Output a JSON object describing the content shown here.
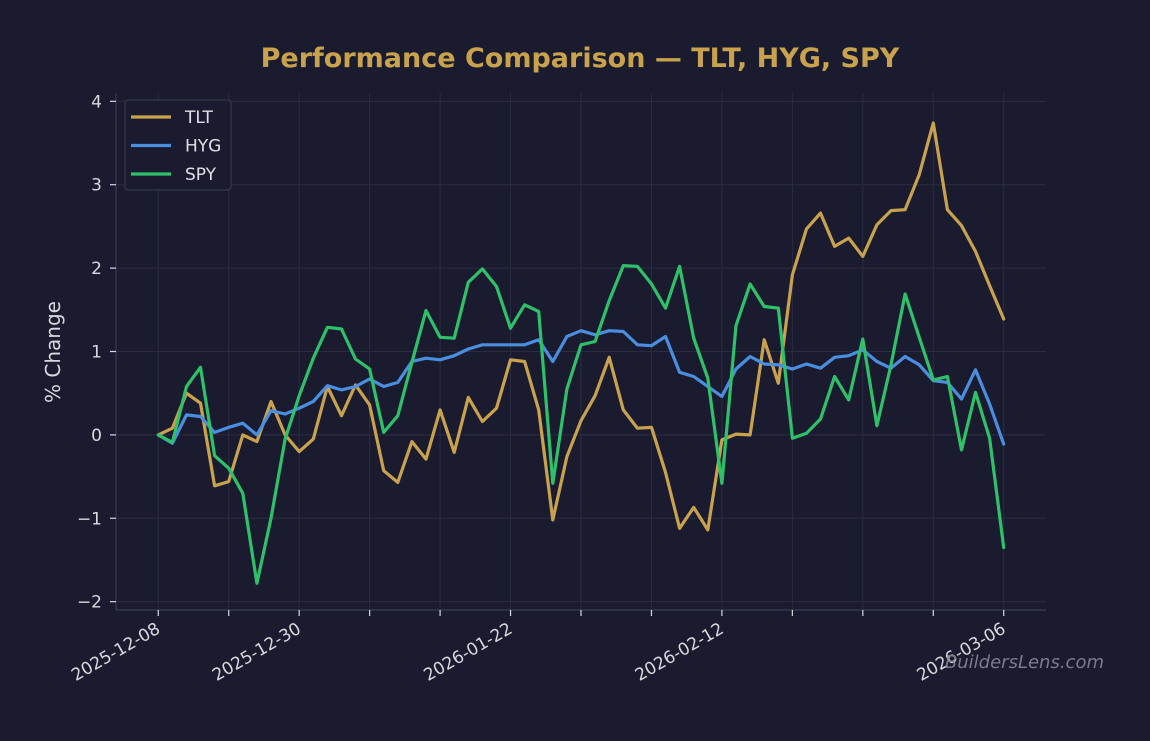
{
  "chart_data": {
    "type": "line",
    "title": "Performance Comparison — TLT, HYG, SPY",
    "xlabel": "",
    "ylabel": "% Change",
    "ylim": [
      -2.1,
      4.1
    ],
    "yticks": [
      -2,
      -1,
      0,
      1,
      2,
      3,
      4
    ],
    "ytick_labels": [
      "−2",
      "−1",
      "0",
      "1",
      "2",
      "3",
      "4"
    ],
    "xlim": [
      -3,
      63
    ],
    "xticks": [
      {
        "idx": 0,
        "label": "2025-12-08"
      },
      {
        "idx": 5,
        "label": ""
      },
      {
        "idx": 10,
        "label": "2025-12-30"
      },
      {
        "idx": 15,
        "label": ""
      },
      {
        "idx": 25,
        "label": "2026-01-22"
      },
      {
        "idx": 20,
        "label": ""
      },
      {
        "idx": 30,
        "label": ""
      },
      {
        "idx": 35,
        "label": ""
      },
      {
        "idx": 40,
        "label": "2026-02-12"
      },
      {
        "idx": 45,
        "label": ""
      },
      {
        "idx": 50,
        "label": ""
      },
      {
        "idx": 55,
        "label": ""
      },
      {
        "idx": 60,
        "label": "2026-03-06"
      }
    ],
    "grid": true,
    "legend_position": "top-left",
    "watermark": "BuildersLens.com",
    "series": [
      {
        "name": "TLT",
        "color": "#c9a24d",
        "values": [
          0.0,
          0.08,
          0.5,
          0.38,
          -0.61,
          -0.56,
          0.0,
          -0.08,
          0.4,
          0.0,
          -0.2,
          -0.05,
          0.58,
          0.23,
          0.6,
          0.36,
          -0.43,
          -0.57,
          -0.08,
          -0.29,
          0.3,
          -0.21,
          0.45,
          0.16,
          0.32,
          0.9,
          0.88,
          0.3,
          -1.02,
          -0.26,
          0.17,
          0.47,
          0.93,
          0.3,
          0.08,
          0.09,
          -0.45,
          -1.12,
          -0.87,
          -1.14,
          -0.06,
          0.01,
          0.0,
          1.14,
          0.62,
          1.92,
          2.47,
          2.66,
          2.26,
          2.36,
          2.14,
          2.52,
          2.69,
          2.7,
          3.12,
          3.74,
          2.7,
          2.51,
          2.2,
          1.79,
          1.39
        ]
      },
      {
        "name": "HYG",
        "color": "#4a8ee0",
        "values": [
          0.0,
          -0.1,
          0.24,
          0.22,
          0.03,
          0.09,
          0.14,
          0.0,
          0.29,
          0.25,
          0.32,
          0.4,
          0.59,
          0.54,
          0.58,
          0.67,
          0.58,
          0.63,
          0.88,
          0.92,
          0.9,
          0.95,
          1.03,
          1.08,
          1.08,
          1.08,
          1.08,
          1.14,
          0.88,
          1.18,
          1.25,
          1.2,
          1.25,
          1.24,
          1.08,
          1.07,
          1.18,
          0.75,
          0.7,
          0.58,
          0.46,
          0.79,
          0.94,
          0.85,
          0.84,
          0.79,
          0.85,
          0.8,
          0.93,
          0.95,
          1.02,
          0.88,
          0.8,
          0.94,
          0.84,
          0.65,
          0.63,
          0.43,
          0.78,
          0.37,
          -0.11
        ]
      },
      {
        "name": "SPY",
        "color": "#2ec16a",
        "values": [
          0.0,
          -0.09,
          0.58,
          0.81,
          -0.25,
          -0.4,
          -0.7,
          -1.78,
          -1.0,
          -0.05,
          0.47,
          0.92,
          1.29,
          1.27,
          0.91,
          0.79,
          0.03,
          0.23,
          0.87,
          1.49,
          1.17,
          1.16,
          1.83,
          1.99,
          1.78,
          1.28,
          1.56,
          1.48,
          -0.58,
          0.55,
          1.08,
          1.12,
          1.61,
          2.03,
          2.02,
          1.81,
          1.52,
          2.02,
          1.16,
          0.68,
          -0.58,
          1.31,
          1.81,
          1.54,
          1.52,
          -0.04,
          0.02,
          0.19,
          0.7,
          0.42,
          1.15,
          0.11,
          0.84,
          1.69,
          1.17,
          0.66,
          0.7,
          -0.18,
          0.51,
          -0.04,
          -1.35
        ]
      }
    ]
  }
}
